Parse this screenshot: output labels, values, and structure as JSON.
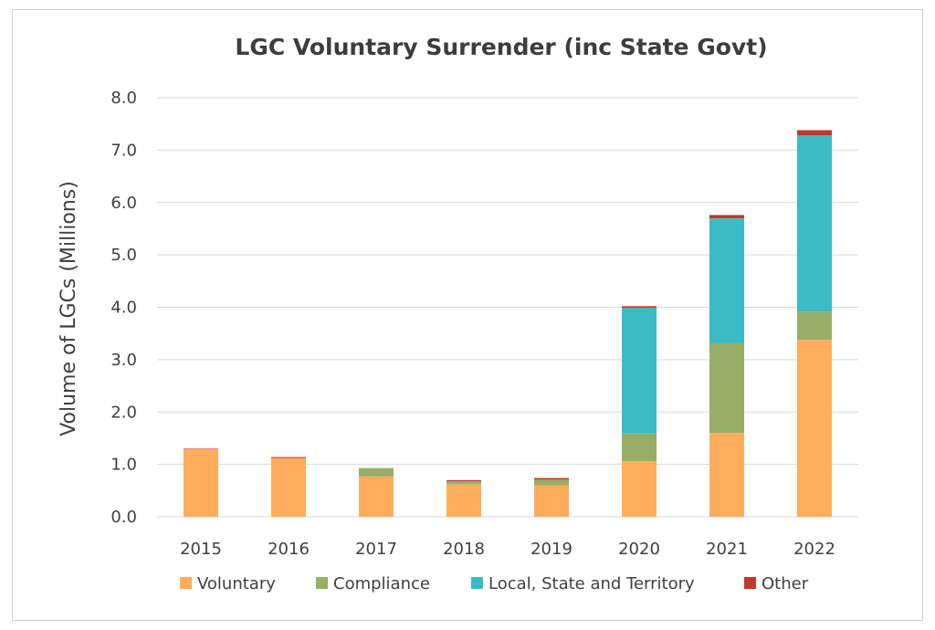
{
  "chart_data": {
    "type": "bar",
    "stacked": true,
    "title": "LGC Voluntary Surrender (inc State Govt)",
    "xlabel": "",
    "ylabel": "Volume of LGCs (Millions)",
    "ylim": [
      0,
      8
    ],
    "yticks": [
      "0.0",
      "1.0",
      "2.0",
      "3.0",
      "4.0",
      "5.0",
      "6.0",
      "7.0",
      "8.0"
    ],
    "grid": true,
    "legend_position": "bottom",
    "categories": [
      "2015",
      "2016",
      "2017",
      "2018",
      "2019",
      "2020",
      "2021",
      "2022"
    ],
    "series": [
      {
        "name": "Voluntary",
        "color": "#FFAD5C",
        "values": [
          1.29,
          1.12,
          0.77,
          0.62,
          0.6,
          1.06,
          1.6,
          3.38
        ]
      },
      {
        "name": "Compliance",
        "color": "#97AE67",
        "values": [
          0.0,
          0.0,
          0.16,
          0.05,
          0.11,
          0.53,
          1.72,
          0.54
        ]
      },
      {
        "name": "Local, State and Territory",
        "color": "#3BBCC4",
        "values": [
          0.0,
          0.0,
          0.0,
          0.01,
          0.0,
          2.4,
          2.38,
          3.36
        ]
      },
      {
        "name": "Other",
        "color": "#C0392B",
        "values": [
          0.01,
          0.02,
          0.0,
          0.02,
          0.03,
          0.03,
          0.06,
          0.1
        ]
      }
    ]
  }
}
